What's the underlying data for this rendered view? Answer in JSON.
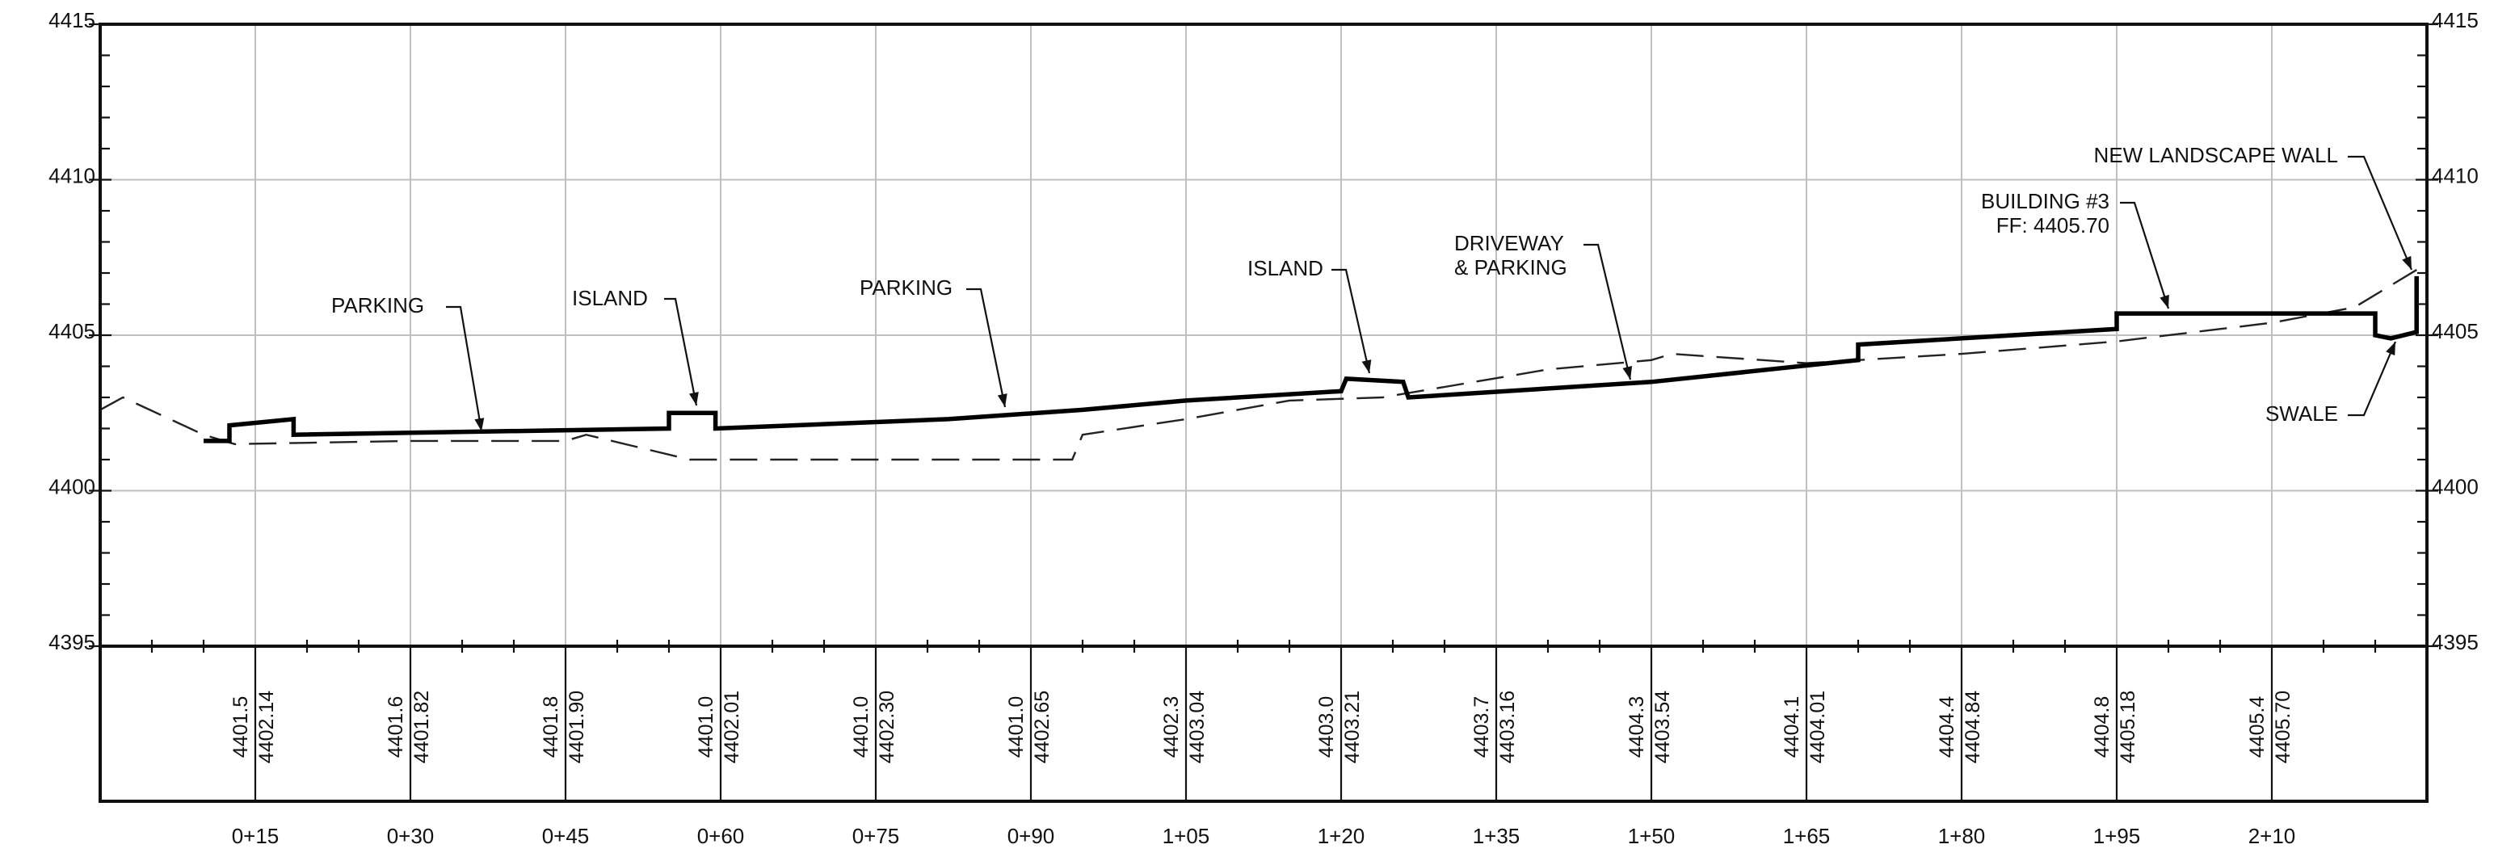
{
  "chart_data": {
    "type": "line",
    "y_tick_labels": [
      "4395",
      "4400",
      "4405",
      "4410",
      "4415"
    ],
    "ylim": [
      4395,
      4415
    ],
    "x_tick_labels": [
      "0+15",
      "0+30",
      "0+45",
      "0+60",
      "0+75",
      "0+90",
      "1+05",
      "1+20",
      "1+35",
      "1+50",
      "1+65",
      "1+80",
      "1+95",
      "2+10"
    ],
    "xlim": [
      0,
      225
    ],
    "grade_table": [
      {
        "existing": "4401.5",
        "proposed": "4402.14"
      },
      {
        "existing": "4401.6",
        "proposed": "4401.82"
      },
      {
        "existing": "4401.8",
        "proposed": "4401.90"
      },
      {
        "existing": "4401.0",
        "proposed": "4402.01"
      },
      {
        "existing": "4401.0",
        "proposed": "4402.30"
      },
      {
        "existing": "4401.0",
        "proposed": "4402.65"
      },
      {
        "existing": "4402.3",
        "proposed": "4403.04"
      },
      {
        "existing": "4403.0",
        "proposed": "4403.21"
      },
      {
        "existing": "4403.7",
        "proposed": "4403.16"
      },
      {
        "existing": "4404.3",
        "proposed": "4403.54"
      },
      {
        "existing": "4404.1",
        "proposed": "4404.01"
      },
      {
        "existing": "4404.4",
        "proposed": "4404.84"
      },
      {
        "existing": "4404.8",
        "proposed": "4405.18"
      },
      {
        "existing": "4405.4",
        "proposed": "4405.70"
      }
    ],
    "series": [
      {
        "style": "solid",
        "color": "#000000",
        "points": [
          [
            10.0,
            4401.6
          ],
          [
            12.5,
            4401.6
          ],
          [
            12.5,
            4402.1
          ],
          [
            18.7,
            4402.3
          ],
          [
            18.7,
            4401.8
          ],
          [
            55.0,
            4402.0
          ],
          [
            55.0,
            4402.5
          ],
          [
            59.5,
            4402.5
          ],
          [
            59.5,
            4402.0
          ],
          [
            82.0,
            4402.3
          ],
          [
            95.0,
            4402.6
          ],
          [
            105.0,
            4402.9
          ],
          [
            120.0,
            4403.2
          ],
          [
            120.5,
            4403.6
          ],
          [
            126.0,
            4403.5
          ],
          [
            126.5,
            4403.0
          ],
          [
            150.0,
            4403.5
          ],
          [
            170.0,
            4404.2
          ],
          [
            170.0,
            4404.7
          ],
          [
            195.0,
            4405.2
          ],
          [
            195.0,
            4405.7
          ],
          [
            220.0,
            4405.7
          ],
          [
            220.0,
            4405.0
          ],
          [
            221.5,
            4404.9
          ],
          [
            224.0,
            4405.1
          ],
          [
            224.0,
            4406.9
          ]
        ]
      },
      {
        "style": "dashed",
        "color": "#222222",
        "points": [
          [
            0.0,
            4402.6
          ],
          [
            2.2,
            4403.0
          ],
          [
            10.0,
            4401.8
          ],
          [
            13.0,
            4401.5
          ],
          [
            30.0,
            4401.6
          ],
          [
            45.0,
            4401.6
          ],
          [
            47.0,
            4401.8
          ],
          [
            57.0,
            4401.0
          ],
          [
            75.0,
            4401.0
          ],
          [
            94.0,
            4401.0
          ],
          [
            95.0,
            4401.8
          ],
          [
            105.0,
            4402.3
          ],
          [
            115.0,
            4402.9
          ],
          [
            124.0,
            4403.0
          ],
          [
            140.0,
            4403.9
          ],
          [
            150.0,
            4404.2
          ],
          [
            152.0,
            4404.4
          ],
          [
            165.0,
            4404.1
          ],
          [
            180.0,
            4404.4
          ],
          [
            195.0,
            4404.8
          ],
          [
            210.0,
            4405.4
          ],
          [
            218.0,
            4405.9
          ],
          [
            225.0,
            4407.3
          ]
        ]
      }
    ],
    "annotations": [
      {
        "lines": [
          "PARKING"
        ]
      },
      {
        "lines": [
          "ISLAND"
        ]
      },
      {
        "lines": [
          "PARKING"
        ]
      },
      {
        "lines": [
          "ISLAND"
        ]
      },
      {
        "lines": [
          "DRIVEWAY",
          "& PARKING"
        ]
      },
      {
        "lines": [
          "BUILDING #3",
          "FF: 4405.70"
        ]
      },
      {
        "lines": [
          "NEW LANDSCAPE WALL"
        ]
      },
      {
        "lines": [
          "SWALE"
        ]
      }
    ]
  }
}
